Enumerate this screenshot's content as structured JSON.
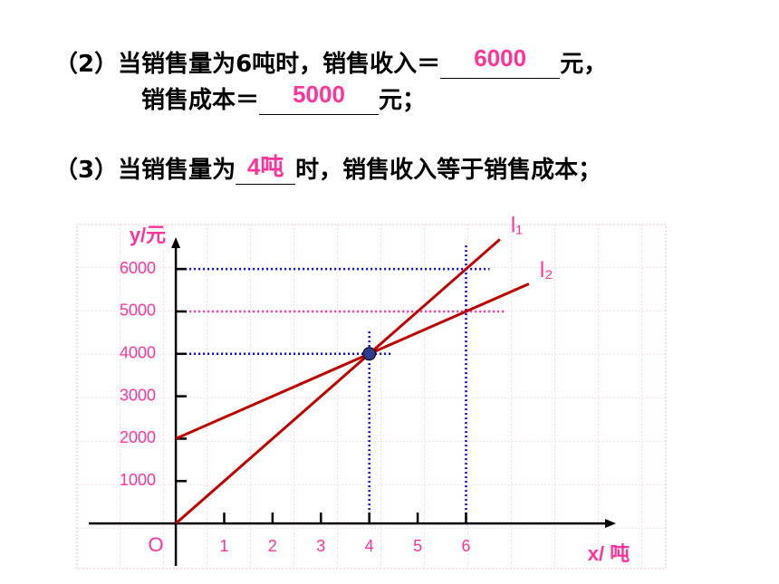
{
  "questions": {
    "q2_prefix": "（2）当销售量为6吨时，销售收入＝",
    "q2_answer1": "6000",
    "q2_unit1": "元，",
    "q2_line2": "销售成本＝",
    "q2_answer2": "5000",
    "q2_unit2": "元；",
    "q3_prefix": "（3）当销售量为",
    "q3_answer": "4吨",
    "q3_suffix": "时，销售收入等于销售成本；"
  },
  "chart_data": {
    "type": "line",
    "y_label": "y/元",
    "x_label": "x/ 吨",
    "origin_label": "O",
    "xlim": [
      -1.8,
      9.1
    ],
    "ylim": [
      -1000,
      6750
    ],
    "xticks": [
      1,
      2,
      3,
      4,
      5,
      6
    ],
    "yticks": [
      1000,
      2000,
      3000,
      4000,
      5000,
      6000
    ],
    "series": [
      {
        "name": "l₁",
        "color": "#c00000",
        "x": [
          0,
          6.7
        ],
        "values": [
          0,
          6700
        ]
      },
      {
        "name": "l₂",
        "color": "#c00000",
        "x": [
          0,
          7.3
        ],
        "values": [
          2000,
          5650
        ]
      }
    ],
    "guides": [
      {
        "x": 6,
        "y": 6000,
        "color": "#0000ff"
      },
      {
        "x": 4,
        "y": 4000,
        "color": "#0000ff"
      },
      {
        "y": 5000,
        "color": "#ff3399"
      }
    ],
    "point": {
      "x": 4,
      "y": 4000,
      "color": "#2e3a8c"
    },
    "grid": true
  }
}
